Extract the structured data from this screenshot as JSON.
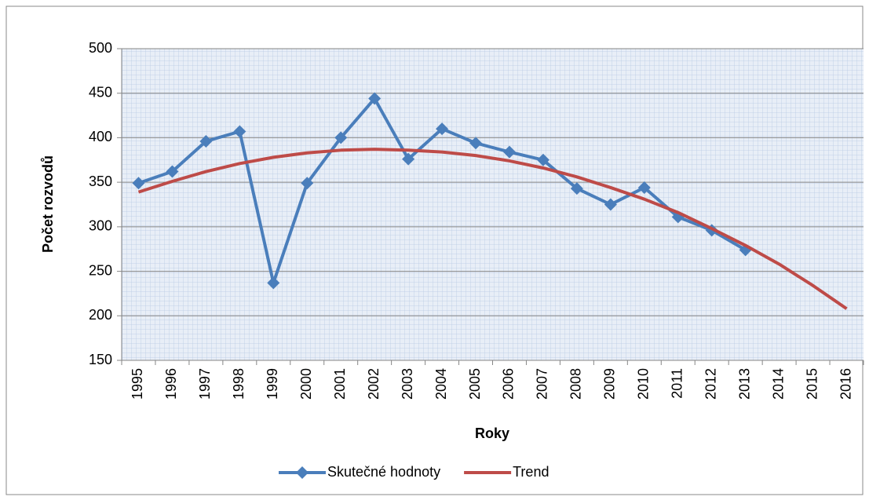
{
  "chart_data": {
    "type": "line",
    "x_label": "Roky",
    "y_label": "Počet rozvodů",
    "categories": [
      "1995",
      "1996",
      "1997",
      "1998",
      "1999",
      "2000",
      "2001",
      "2002",
      "2003",
      "2004",
      "2005",
      "2006",
      "2007",
      "2008",
      "2009",
      "2010",
      "2011",
      "2012",
      "2013",
      "2014",
      "2015",
      "2016"
    ],
    "series": [
      {
        "name": "Skutečné hodnoty",
        "color": "#4a7ebb",
        "marker": "diamond",
        "values": [
          349,
          362,
          396,
          407,
          237,
          349,
          400,
          444,
          376,
          410,
          394,
          384,
          375,
          343,
          325,
          344,
          311,
          296,
          274,
          null,
          null,
          null
        ]
      },
      {
        "name": "Trend",
        "color": "#be4b48",
        "marker": "none",
        "values": [
          339,
          351,
          362,
          371,
          378,
          383,
          386,
          387,
          386,
          384,
          380,
          374,
          366,
          356,
          344,
          331,
          316,
          298,
          279,
          258,
          234,
          208
        ]
      }
    ],
    "ylim": [
      150,
      500
    ],
    "yticks": [
      150,
      200,
      250,
      300,
      350,
      400,
      450,
      500
    ],
    "grid": true,
    "legend": "bottom"
  }
}
